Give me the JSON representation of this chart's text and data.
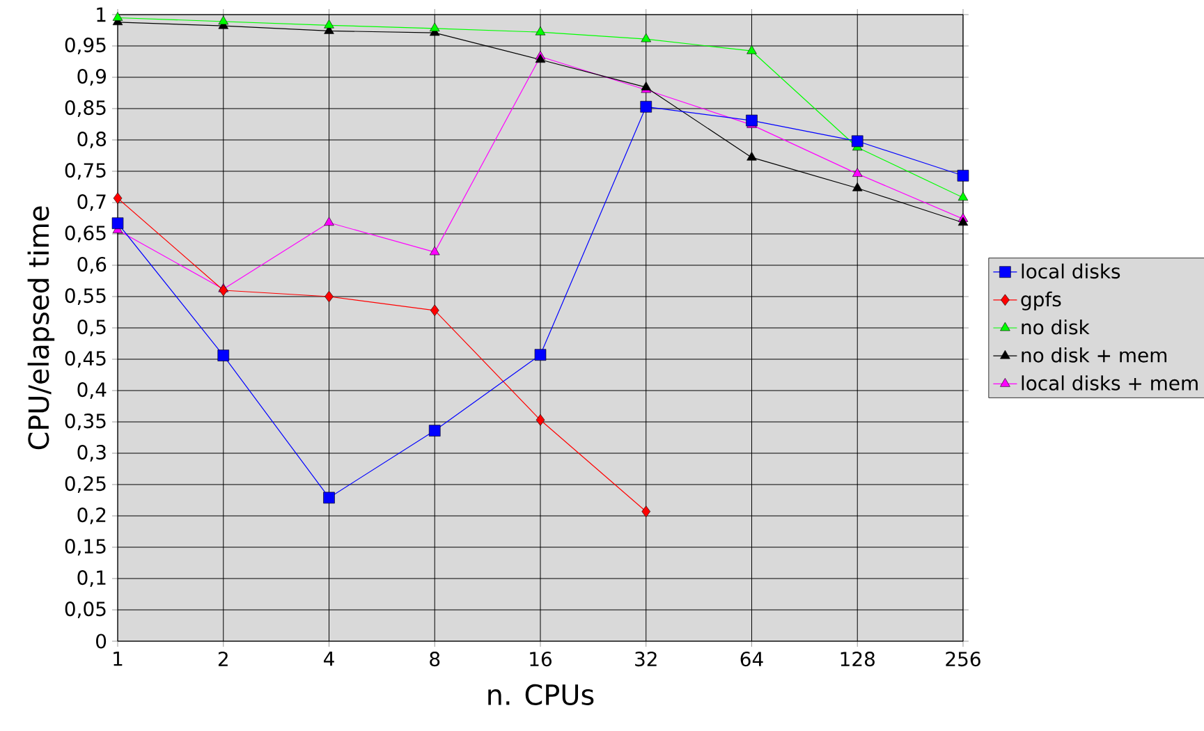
{
  "chart_data": {
    "type": "line",
    "xlabel": "n. CPUs",
    "ylabel": "CPU/elapsed time",
    "categories": [
      "1",
      "2",
      "4",
      "8",
      "16",
      "32",
      "64",
      "128",
      "256"
    ],
    "series": [
      {
        "name": "local disks",
        "color": "#0000ff",
        "marker": "square",
        "values": [
          0.667,
          0.456,
          0.229,
          0.336,
          0.457,
          0.853,
          0.831,
          0.798,
          0.743
        ]
      },
      {
        "name": "gpfs",
        "color": "#ff0000",
        "marker": "diamond",
        "values": [
          0.707,
          0.56,
          0.55,
          0.528,
          0.353,
          0.207,
          null,
          null,
          null
        ]
      },
      {
        "name": "no disk",
        "color": "#00ff00",
        "marker": "triangle",
        "values": [
          0.995,
          0.989,
          0.983,
          0.978,
          0.972,
          0.961,
          0.942,
          0.788,
          0.708
        ]
      },
      {
        "name": "no disk + mem",
        "color": "#000000",
        "marker": "triangle",
        "values": [
          0.988,
          0.982,
          0.974,
          0.971,
          0.928,
          0.884,
          0.772,
          0.723,
          0.668
        ]
      },
      {
        "name": "local disks + mem",
        "color": "#ff00ff",
        "marker": "triangle",
        "values": [
          0.656,
          0.562,
          0.668,
          0.621,
          0.933,
          0.88,
          0.824,
          0.746,
          0.674
        ]
      }
    ],
    "ylim": [
      0,
      1
    ],
    "yticks": [
      0,
      {
        "value": 0.05,
        "label": "0,05"
      },
      {
        "value": 0.1,
        "label": "0,1"
      },
      {
        "value": 0.15,
        "label": "0,15"
      },
      {
        "value": 0.2,
        "label": "0,2"
      },
      {
        "value": 0.25,
        "label": "0,25"
      },
      {
        "value": 0.3,
        "label": "0,3"
      },
      {
        "value": 0.35,
        "label": "0,35"
      },
      {
        "value": 0.4,
        "label": "0,4"
      },
      {
        "value": 0.45,
        "label": "0,45"
      },
      {
        "value": 0.5,
        "label": "0,5"
      },
      {
        "value": 0.55,
        "label": "0,55"
      },
      {
        "value": 0.6,
        "label": "0,6"
      },
      {
        "value": 0.65,
        "label": "0,65"
      },
      {
        "value": 0.7,
        "label": "0,7"
      },
      {
        "value": 0.75,
        "label": "0,75"
      },
      {
        "value": 0.8,
        "label": "0,8"
      },
      {
        "value": 0.85,
        "label": "0,85"
      },
      {
        "value": 0.9,
        "label": "0,9"
      },
      {
        "value": 0.95,
        "label": "0,95"
      },
      1
    ],
    "grid": true,
    "legend": "right",
    "line_style": "solid"
  }
}
